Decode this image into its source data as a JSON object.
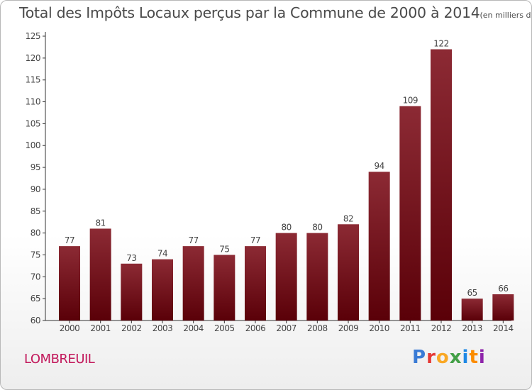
{
  "header": {
    "title": "Total des Impôts Locaux perçus par la Commune de 2000 à 2014",
    "unit": "(en milliers d'€)"
  },
  "commune": "LOMBREUIL",
  "logo": {
    "text": "Proxiti",
    "colors": [
      "#3a7bd5",
      "#e53935",
      "#f9a825",
      "#43a047",
      "#1e88e5",
      "#fb8c00",
      "#8e24aa"
    ]
  },
  "colors": {
    "bar_top": "#8c2a34",
    "bar_bottom": "#5a0008",
    "text": "#444444",
    "axis": "#333333"
  },
  "chart_data": {
    "type": "bar",
    "title": "Total des Impôts Locaux perçus par la Commune de 2000 à 2014",
    "xlabel": "",
    "ylabel": "",
    "categories": [
      "2000",
      "2001",
      "2002",
      "2003",
      "2004",
      "2005",
      "2006",
      "2007",
      "2008",
      "2009",
      "2010",
      "2011",
      "2012",
      "2013",
      "2014"
    ],
    "values": [
      77,
      81,
      73,
      74,
      77,
      75,
      77,
      80,
      80,
      82,
      94,
      109,
      122,
      65,
      66
    ],
    "ylim": [
      60,
      125
    ],
    "yticks": [
      60,
      65,
      70,
      75,
      80,
      85,
      90,
      95,
      100,
      105,
      110,
      115,
      120,
      125
    ],
    "grid": false,
    "legend": "none"
  }
}
